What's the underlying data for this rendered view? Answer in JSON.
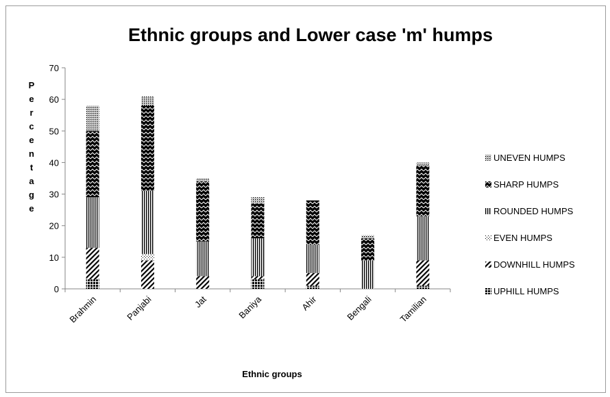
{
  "chart_data": {
    "type": "bar",
    "stacked": true,
    "title": "Ethnic groups and Lower case 'm' humps",
    "xlabel": "Ethnic groups",
    "ylabel": "Percentage",
    "ylim": [
      0,
      70
    ],
    "yticks": [
      0,
      10,
      20,
      30,
      40,
      50,
      60,
      70
    ],
    "grid": false,
    "legend_position": "right",
    "categories": [
      "Brahmin",
      "Panjabi",
      "Jat",
      "Baniya",
      "Ahir",
      "Bengali",
      "Tamilian"
    ],
    "series": [
      {
        "name": "UPHILL HUMPS",
        "values": [
          3,
          0,
          0,
          3,
          1,
          0,
          1
        ],
        "pattern": "checker"
      },
      {
        "name": "DOWNHILL HUMPS",
        "values": [
          10,
          9,
          4,
          1,
          4,
          0,
          8
        ],
        "pattern": "diagonal"
      },
      {
        "name": "EVEN HUMPS",
        "values": [
          0,
          2,
          0,
          0,
          0,
          0,
          0
        ],
        "pattern": "dots"
      },
      {
        "name": "ROUNDED HUMPS",
        "values": [
          16,
          20,
          11,
          12,
          9,
          9,
          14
        ],
        "pattern": "vertical"
      },
      {
        "name": "SHARP HUMPS",
        "values": [
          21,
          27,
          19,
          11,
          14,
          7,
          16
        ],
        "pattern": "zigzag"
      },
      {
        "name": "UNEVEN HUMPS",
        "values": [
          8,
          3,
          1,
          2,
          0,
          1,
          1
        ],
        "pattern": "dots-dense"
      }
    ]
  }
}
